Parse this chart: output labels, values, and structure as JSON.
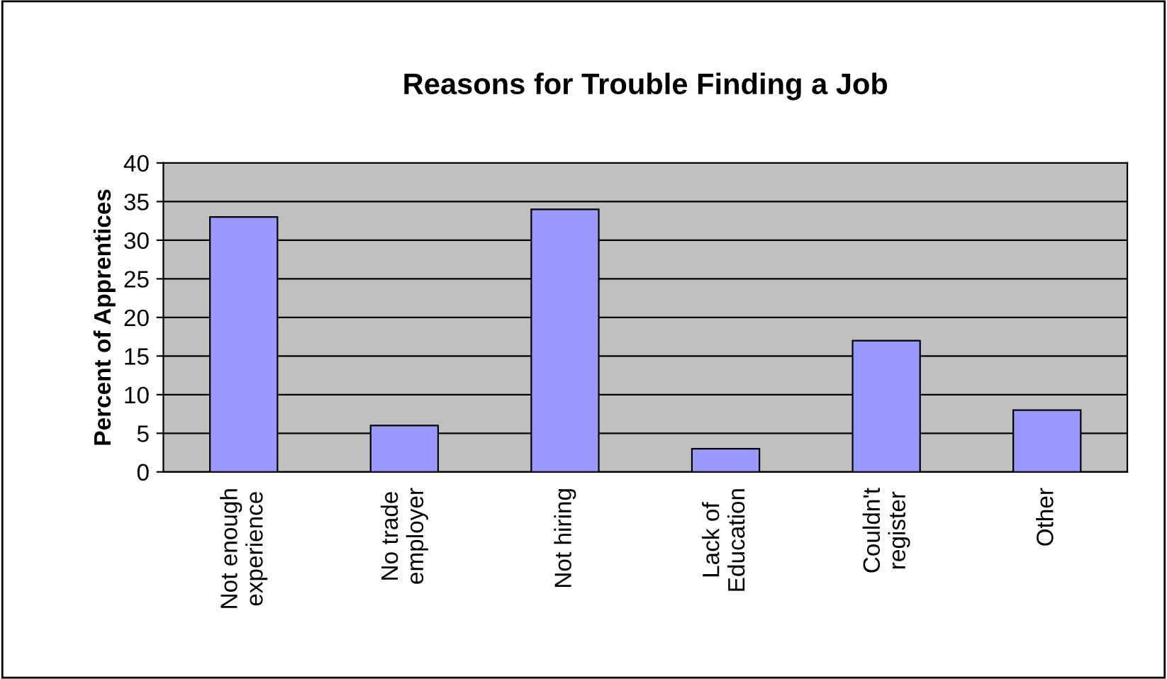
{
  "chart_data": {
    "type": "bar",
    "title": "Reasons for Trouble Finding a Job",
    "ylabel": "Percent of Apprentices",
    "categories": [
      "Not enough\nexperience",
      "No trade\nemployer",
      "Not hiring",
      "Lack of\nEducation",
      "Couldn't\nregister",
      "Other"
    ],
    "values": [
      33,
      6,
      34,
      3,
      17,
      8
    ],
    "color": "#9999ff",
    "ylim": [
      0,
      40
    ],
    "yticks": [
      0,
      5,
      10,
      15,
      20,
      25,
      30,
      35,
      40
    ],
    "grid": "y",
    "legend": false
  }
}
